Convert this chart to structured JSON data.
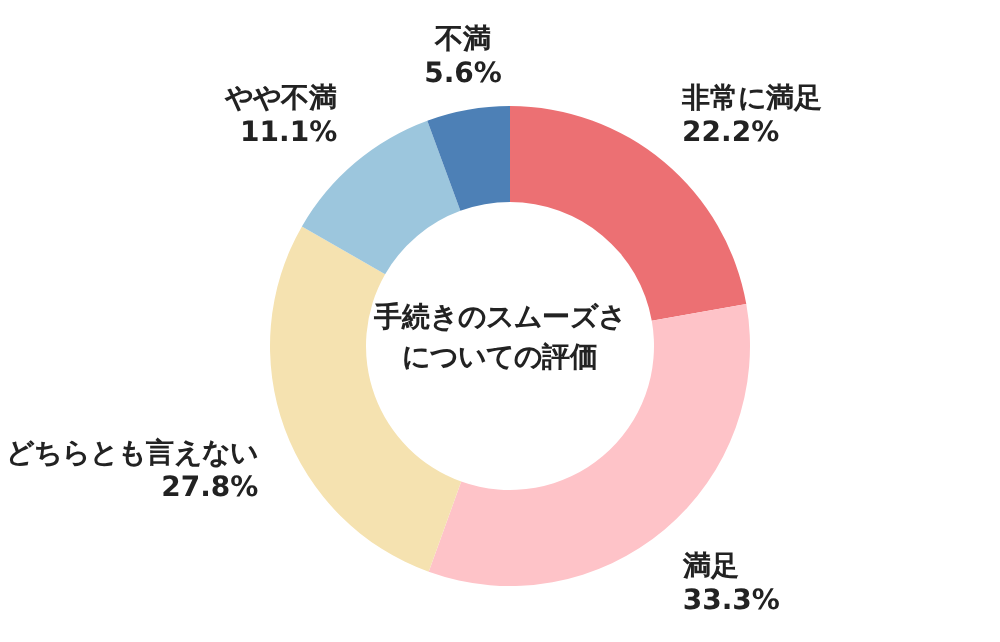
{
  "chart_data": {
    "type": "donut",
    "title": "手続きのスムーズさについての評価",
    "categories": [
      "非常に満足",
      "満足",
      "どちらとも言えない",
      "やや不満",
      "不満"
    ],
    "values": [
      22.2,
      33.3,
      27.8,
      11.1,
      5.6
    ],
    "value_labels": [
      "22.2%",
      "33.3%",
      "27.8%",
      "11.1%",
      "5.6%"
    ],
    "colors": [
      "#ec7073",
      "#fec3c8",
      "#f5e2b0",
      "#9cc6dd",
      "#4d80b6"
    ]
  }
}
